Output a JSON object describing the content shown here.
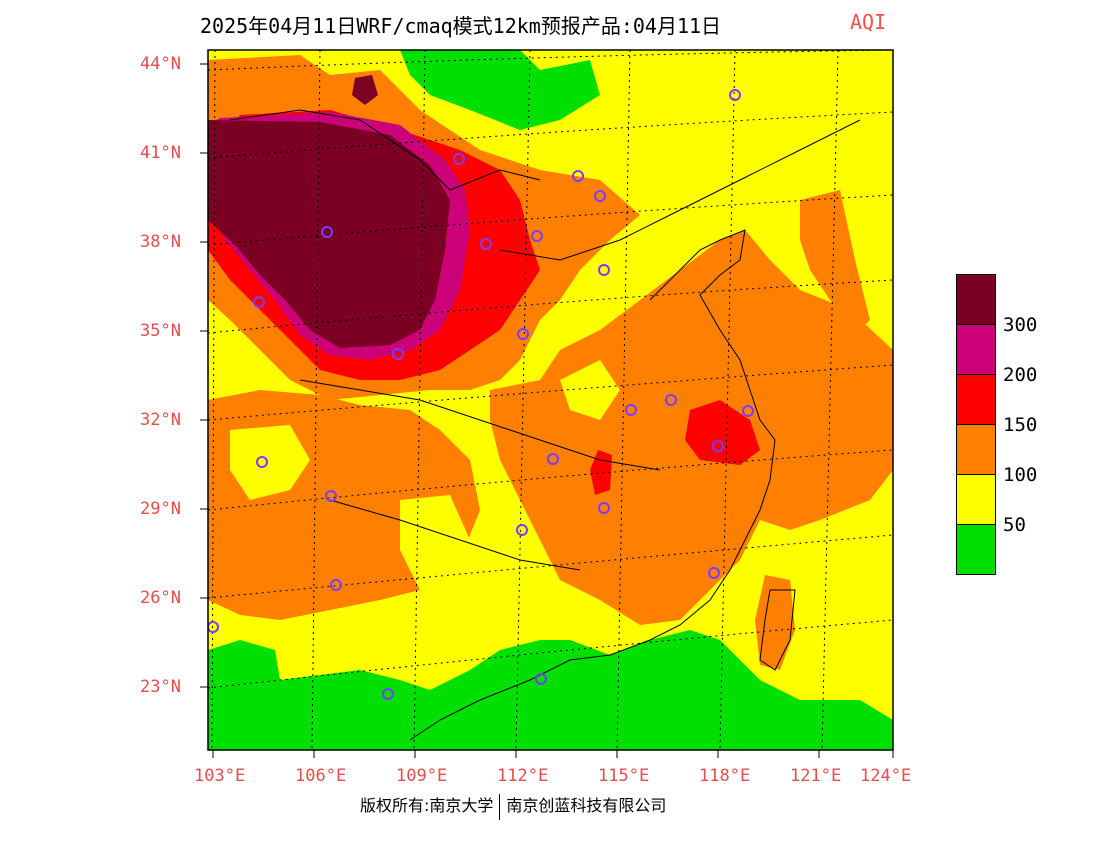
{
  "title": {
    "main": "2025年04月11日WRF/cmaq模式12km预报产品:04月11日",
    "variable": "AQI"
  },
  "axes": {
    "lat_labels": [
      "44°N",
      "41°N",
      "38°N",
      "35°N",
      "32°N",
      "29°N",
      "26°N",
      "23°N"
    ],
    "lon_labels": [
      "103°E",
      "106°E",
      "109°E",
      "112°E",
      "115°E",
      "118°E",
      "121°E",
      "124°E"
    ]
  },
  "legend": {
    "labels": [
      "300",
      "200",
      "150",
      "100",
      "50"
    ],
    "colors": [
      "#7b0024",
      "#cc0077",
      "#ff0000",
      "#ff8000",
      "#ffff00",
      "#00e000"
    ]
  },
  "copyright": {
    "left": "版权所有:南京大学",
    "right": "南京创蓝科技有限公司"
  },
  "colors": {
    "tick_text": "#e84c4c",
    "city_marker": "#7a3cff"
  }
}
